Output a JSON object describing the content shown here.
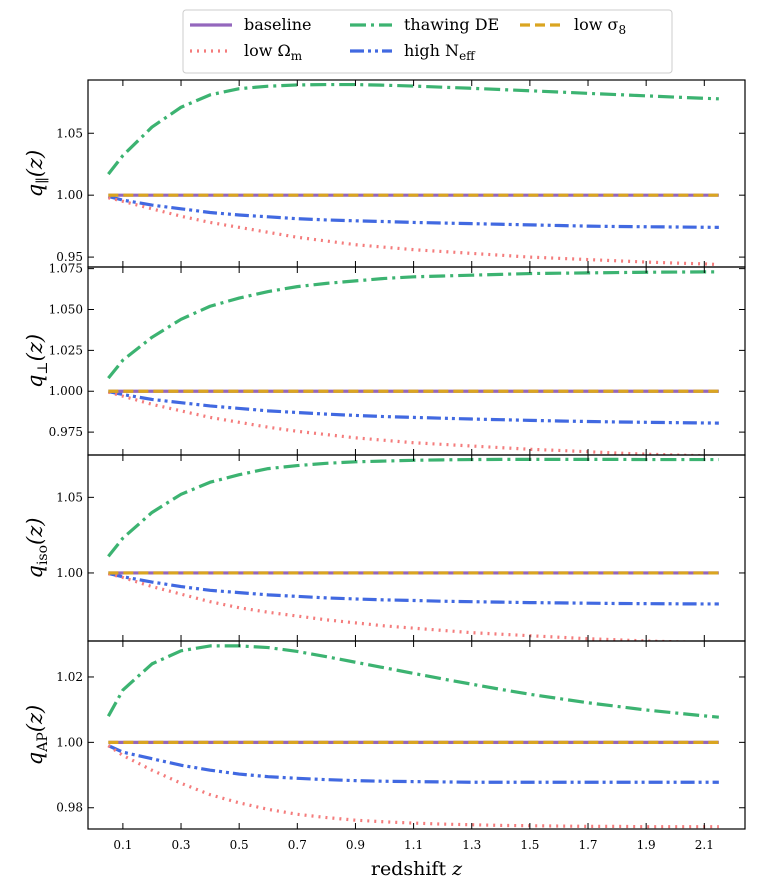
{
  "chart_data": {
    "type": "line",
    "xlabel": "redshift",
    "xlabel_var": "z",
    "x_ticks": [
      "0.1",
      "0.3",
      "0.5",
      "0.7",
      "0.9",
      "1.1",
      "1.3",
      "1.5",
      "1.7",
      "1.9",
      "2.1"
    ],
    "xlim": [
      -0.02,
      2.24
    ],
    "x": [
      0.05,
      0.1,
      0.2,
      0.3,
      0.4,
      0.5,
      0.6,
      0.7,
      0.8,
      0.9,
      1.0,
      1.1,
      1.2,
      1.3,
      1.4,
      1.5,
      1.6,
      1.7,
      1.8,
      1.9,
      2.0,
      2.1,
      2.15
    ],
    "legend": {
      "position": "top-center",
      "entries": [
        {
          "key": "baseline",
          "label": "baseline"
        },
        {
          "key": "thawing",
          "label": "thawing DE"
        },
        {
          "key": "low_s8",
          "label": "low σ",
          "sub": "8"
        },
        {
          "key": "low_om",
          "label": "low Ω",
          "sub": "m"
        },
        {
          "key": "high_neff",
          "label": "high N",
          "sub": "eff"
        }
      ]
    },
    "series_styles": {
      "baseline": {
        "color": "#9467bd",
        "dash": "",
        "width": 3.2
      },
      "low_om": {
        "color": "#f47c7c",
        "dash": "2 5",
        "width": 3.2
      },
      "thawing": {
        "color": "#3cb371",
        "dash": "16 5 3 5",
        "width": 3.2
      },
      "high_neff": {
        "color": "#4169e1",
        "dash": "14 4 3 4 3 4",
        "width": 3.2
      },
      "low_s8": {
        "color": "#daa520",
        "dash": "10 5",
        "width": 3.2
      }
    },
    "panels": [
      {
        "ylabel": "q",
        "ylabel_sub": "∥",
        "ylabel_suffix": "(z)",
        "ylim": [
          0.942,
          1.093
        ],
        "yticks": [
          0.95,
          1.0,
          1.05
        ],
        "ytick_labels": [
          "0.95",
          "1.00",
          "1.05"
        ],
        "series": {
          "baseline": [
            1,
            1,
            1,
            1,
            1,
            1,
            1,
            1,
            1,
            1,
            1,
            1,
            1,
            1,
            1,
            1,
            1,
            1,
            1,
            1,
            1,
            1,
            1
          ],
          "low_s8": [
            1,
            1,
            1,
            1,
            1,
            1,
            1,
            1,
            1,
            1,
            1,
            1,
            1,
            1,
            1,
            1,
            1,
            1,
            1,
            1,
            1,
            1,
            1
          ],
          "thawing": [
            1.017,
            1.032,
            1.055,
            1.071,
            1.081,
            1.086,
            1.088,
            1.089,
            1.0893,
            1.0893,
            1.0888,
            1.0881,
            1.0872,
            1.0863,
            1.0853,
            1.0843,
            1.0833,
            1.0822,
            1.0812,
            1.0802,
            1.0792,
            1.0782,
            1.0778
          ],
          "low_om": [
            0.998,
            0.995,
            0.989,
            0.983,
            0.978,
            0.974,
            0.97,
            0.966,
            0.963,
            0.96,
            0.958,
            0.956,
            0.9545,
            0.953,
            0.9515,
            0.95,
            0.949,
            0.948,
            0.947,
            0.946,
            0.9452,
            0.9445,
            0.944
          ],
          "high_neff": [
            0.999,
            0.996,
            0.992,
            0.989,
            0.986,
            0.984,
            0.9825,
            0.981,
            0.98,
            0.9793,
            0.9787,
            0.978,
            0.9775,
            0.977,
            0.9765,
            0.976,
            0.9755,
            0.975,
            0.9747,
            0.9745,
            0.9743,
            0.9741,
            0.974
          ]
        }
      },
      {
        "ylabel": "q",
        "ylabel_sub": "⊥",
        "ylabel_suffix": "(z)",
        "ylim": [
          0.961,
          1.076
        ],
        "yticks": [
          0.975,
          1.0,
          1.025,
          1.05,
          1.075
        ],
        "ytick_labels": [
          "0.975",
          "1.000",
          "1.025",
          "1.050",
          "1.075"
        ],
        "series": {
          "baseline": [
            1,
            1,
            1,
            1,
            1,
            1,
            1,
            1,
            1,
            1,
            1,
            1,
            1,
            1,
            1,
            1,
            1,
            1,
            1,
            1,
            1,
            1,
            1
          ],
          "low_s8": [
            1,
            1,
            1,
            1,
            1,
            1,
            1,
            1,
            1,
            1,
            1,
            1,
            1,
            1,
            1,
            1,
            1,
            1,
            1,
            1,
            1,
            1,
            1
          ],
          "thawing": [
            1.008,
            1.019,
            1.033,
            1.044,
            1.052,
            1.057,
            1.061,
            1.064,
            1.066,
            1.0675,
            1.069,
            1.07,
            1.0705,
            1.071,
            1.0715,
            1.072,
            1.0722,
            1.0724,
            1.0726,
            1.0728,
            1.0729,
            1.073,
            1.073
          ],
          "low_om": [
            0.9995,
            0.997,
            0.992,
            0.988,
            0.984,
            0.981,
            0.978,
            0.9755,
            0.9735,
            0.9715,
            0.97,
            0.9685,
            0.9675,
            0.9665,
            0.9655,
            0.9645,
            0.9638,
            0.963,
            0.9622,
            0.9615,
            0.961,
            0.9605,
            0.9602
          ],
          "high_neff": [
            0.9998,
            0.998,
            0.995,
            0.993,
            0.991,
            0.9895,
            0.988,
            0.987,
            0.986,
            0.9852,
            0.9845,
            0.984,
            0.9835,
            0.983,
            0.9826,
            0.9822,
            0.9818,
            0.9815,
            0.9812,
            0.981,
            0.9808,
            0.9806,
            0.9805
          ]
        }
      },
      {
        "ylabel": "q",
        "ylabel_sub": "iso",
        "ylabel_suffix": "(z)",
        "ylim": [
          0.955,
          1.078
        ],
        "yticks": [
          1.0,
          1.05
        ],
        "ytick_labels": [
          "1.00",
          "1.05"
        ],
        "series": {
          "baseline": [
            1,
            1,
            1,
            1,
            1,
            1,
            1,
            1,
            1,
            1,
            1,
            1,
            1,
            1,
            1,
            1,
            1,
            1,
            1,
            1,
            1,
            1,
            1
          ],
          "low_s8": [
            1,
            1,
            1,
            1,
            1,
            1,
            1,
            1,
            1,
            1,
            1,
            1,
            1,
            1,
            1,
            1,
            1,
            1,
            1,
            1,
            1,
            1,
            1
          ],
          "thawing": [
            1.011,
            1.023,
            1.04,
            1.052,
            1.06,
            1.065,
            1.069,
            1.071,
            1.0725,
            1.0735,
            1.074,
            1.0745,
            1.0748,
            1.075,
            1.0751,
            1.0751,
            1.0751,
            1.0751,
            1.0751,
            1.075,
            1.075,
            1.075,
            1.075
          ],
          "low_om": [
            0.9995,
            0.997,
            0.991,
            0.986,
            0.981,
            0.977,
            0.974,
            0.9715,
            0.969,
            0.967,
            0.965,
            0.9635,
            0.962,
            0.9605,
            0.9595,
            0.9585,
            0.9575,
            0.9565,
            0.9558,
            0.955,
            0.9545,
            0.954,
            0.9538
          ],
          "high_neff": [
            0.9997,
            0.9975,
            0.994,
            0.991,
            0.9885,
            0.987,
            0.9855,
            0.9845,
            0.9835,
            0.9828,
            0.9822,
            0.9818,
            0.9813,
            0.981,
            0.9807,
            0.9804,
            0.9802,
            0.98,
            0.9798,
            0.9797,
            0.9796,
            0.9795,
            0.9795
          ]
        }
      },
      {
        "ylabel": "q",
        "ylabel_sub": "AP",
        "ylabel_suffix": "(z)",
        "ylim": [
          0.9735,
          1.031
        ],
        "yticks": [
          0.98,
          1.0,
          1.02
        ],
        "ytick_labels": [
          "0.98",
          "1.00",
          "1.02"
        ],
        "series": {
          "baseline": [
            1,
            1,
            1,
            1,
            1,
            1,
            1,
            1,
            1,
            1,
            1,
            1,
            1,
            1,
            1,
            1,
            1,
            1,
            1,
            1,
            1,
            1,
            1
          ],
          "low_s8": [
            1,
            1,
            1,
            1,
            1,
            1,
            1,
            1,
            1,
            1,
            1,
            1,
            1,
            1,
            1,
            1,
            1,
            1,
            1,
            1,
            1,
            1,
            1
          ],
          "thawing": [
            1.008,
            1.016,
            1.024,
            1.028,
            1.0295,
            1.0295,
            1.029,
            1.0278,
            1.0262,
            1.0245,
            1.0228,
            1.0211,
            1.0194,
            1.0178,
            1.0162,
            1.0147,
            1.0134,
            1.0121,
            1.011,
            1.0099,
            1.009,
            1.0081,
            1.0077
          ],
          "low_om": [
            0.999,
            0.996,
            0.9915,
            0.9875,
            0.984,
            0.9815,
            0.9795,
            0.978,
            0.977,
            0.9762,
            0.9757,
            0.9753,
            0.975,
            0.9748,
            0.9746,
            0.9745,
            0.9744,
            0.9743,
            0.9743,
            0.9742,
            0.9742,
            0.9742,
            0.9742
          ],
          "high_neff": [
            0.999,
            0.997,
            0.995,
            0.993,
            0.9915,
            0.9903,
            0.9895,
            0.989,
            0.9886,
            0.9883,
            0.9881,
            0.988,
            0.9879,
            0.9878,
            0.9878,
            0.9878,
            0.9878,
            0.9878,
            0.9878,
            0.9878,
            0.9878,
            0.9878,
            0.9878
          ]
        }
      }
    ]
  }
}
